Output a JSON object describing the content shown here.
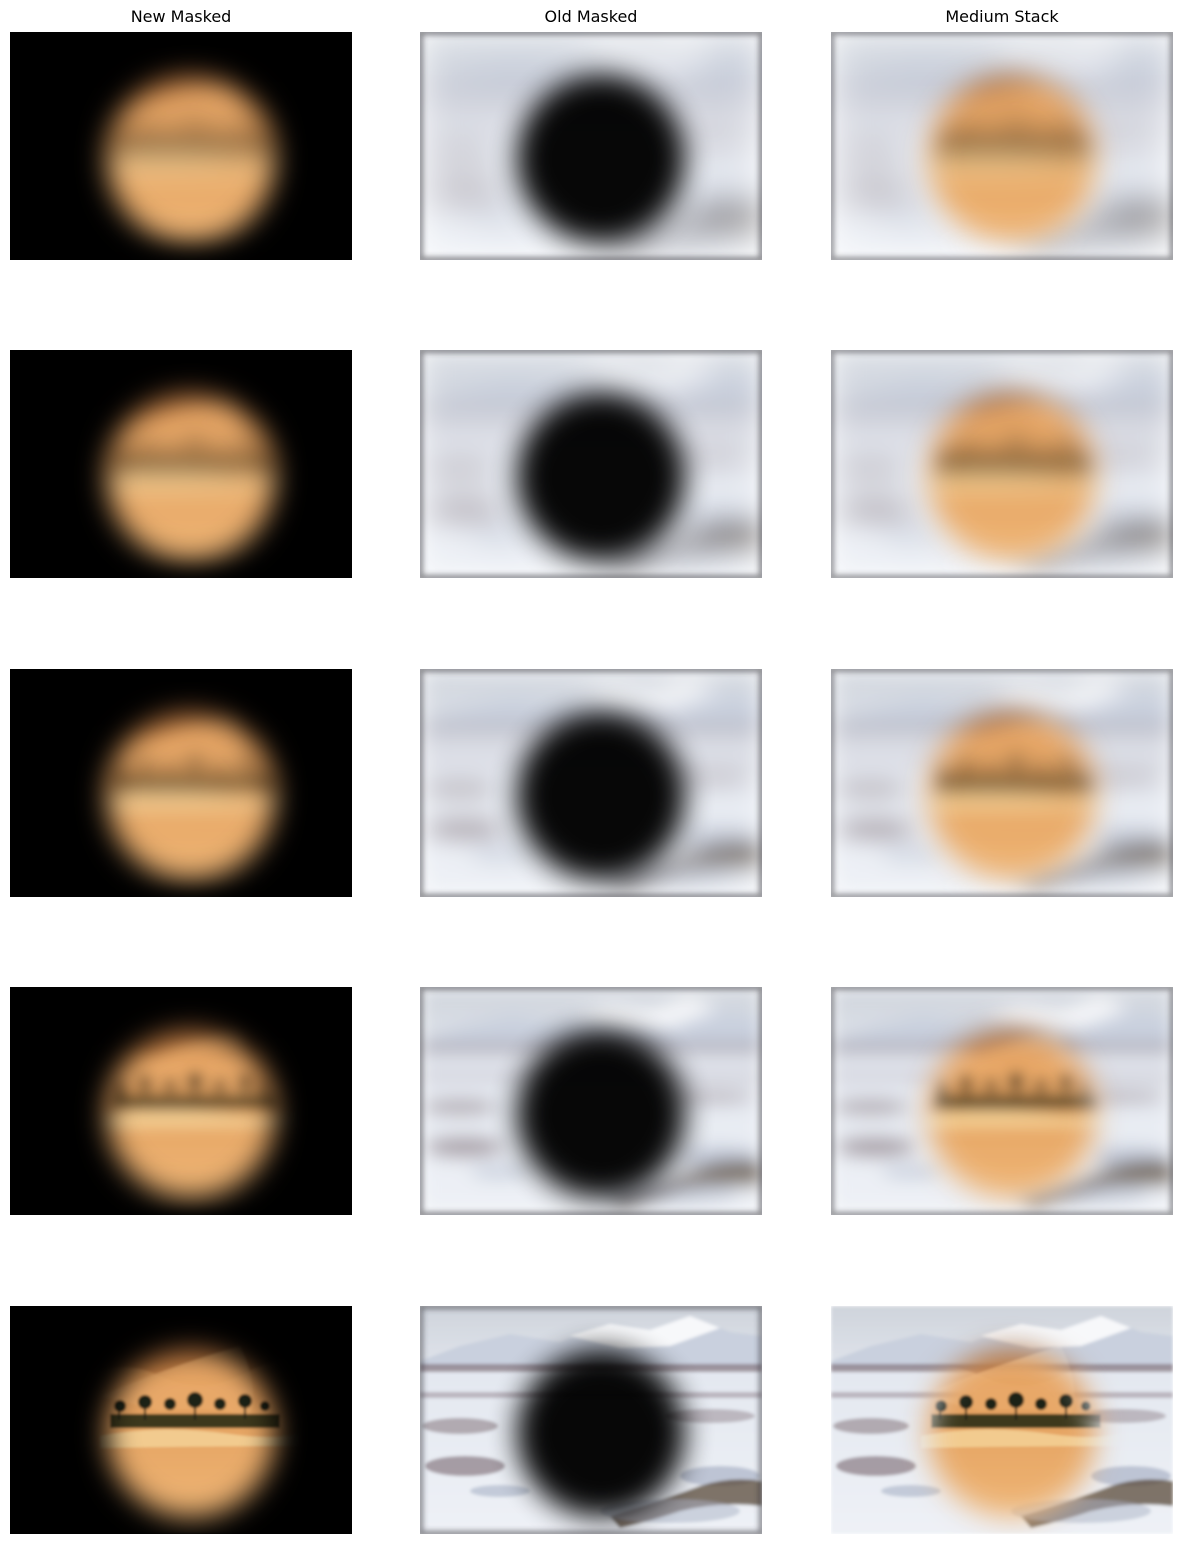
{
  "columns": [
    {
      "key": "new_masked",
      "title": "New Masked"
    },
    {
      "key": "old_masked",
      "title": "Old Masked"
    },
    {
      "key": "medium_stack",
      "title": "Medium Stack"
    }
  ],
  "levels": [
    {
      "blur": 18,
      "desert_blur": 14
    },
    {
      "blur": 15,
      "desert_blur": 12
    },
    {
      "blur": 12,
      "desert_blur": 10
    },
    {
      "blur": 9,
      "desert_blur": 7
    },
    {
      "blur": 1.5,
      "desert_blur": 1.2
    }
  ],
  "colors": {
    "snow": "#eef1f6",
    "snow_shadow": "#a9b2c6",
    "sky": "#dfe3ea",
    "mountain": "#c9d0de",
    "brush": "#6e5a62",
    "sand_light": "#f0b878",
    "sand": "#d98e4c",
    "sand_dark": "#9a5a2c",
    "palm": "#1f2412",
    "background_black": "#000000"
  }
}
